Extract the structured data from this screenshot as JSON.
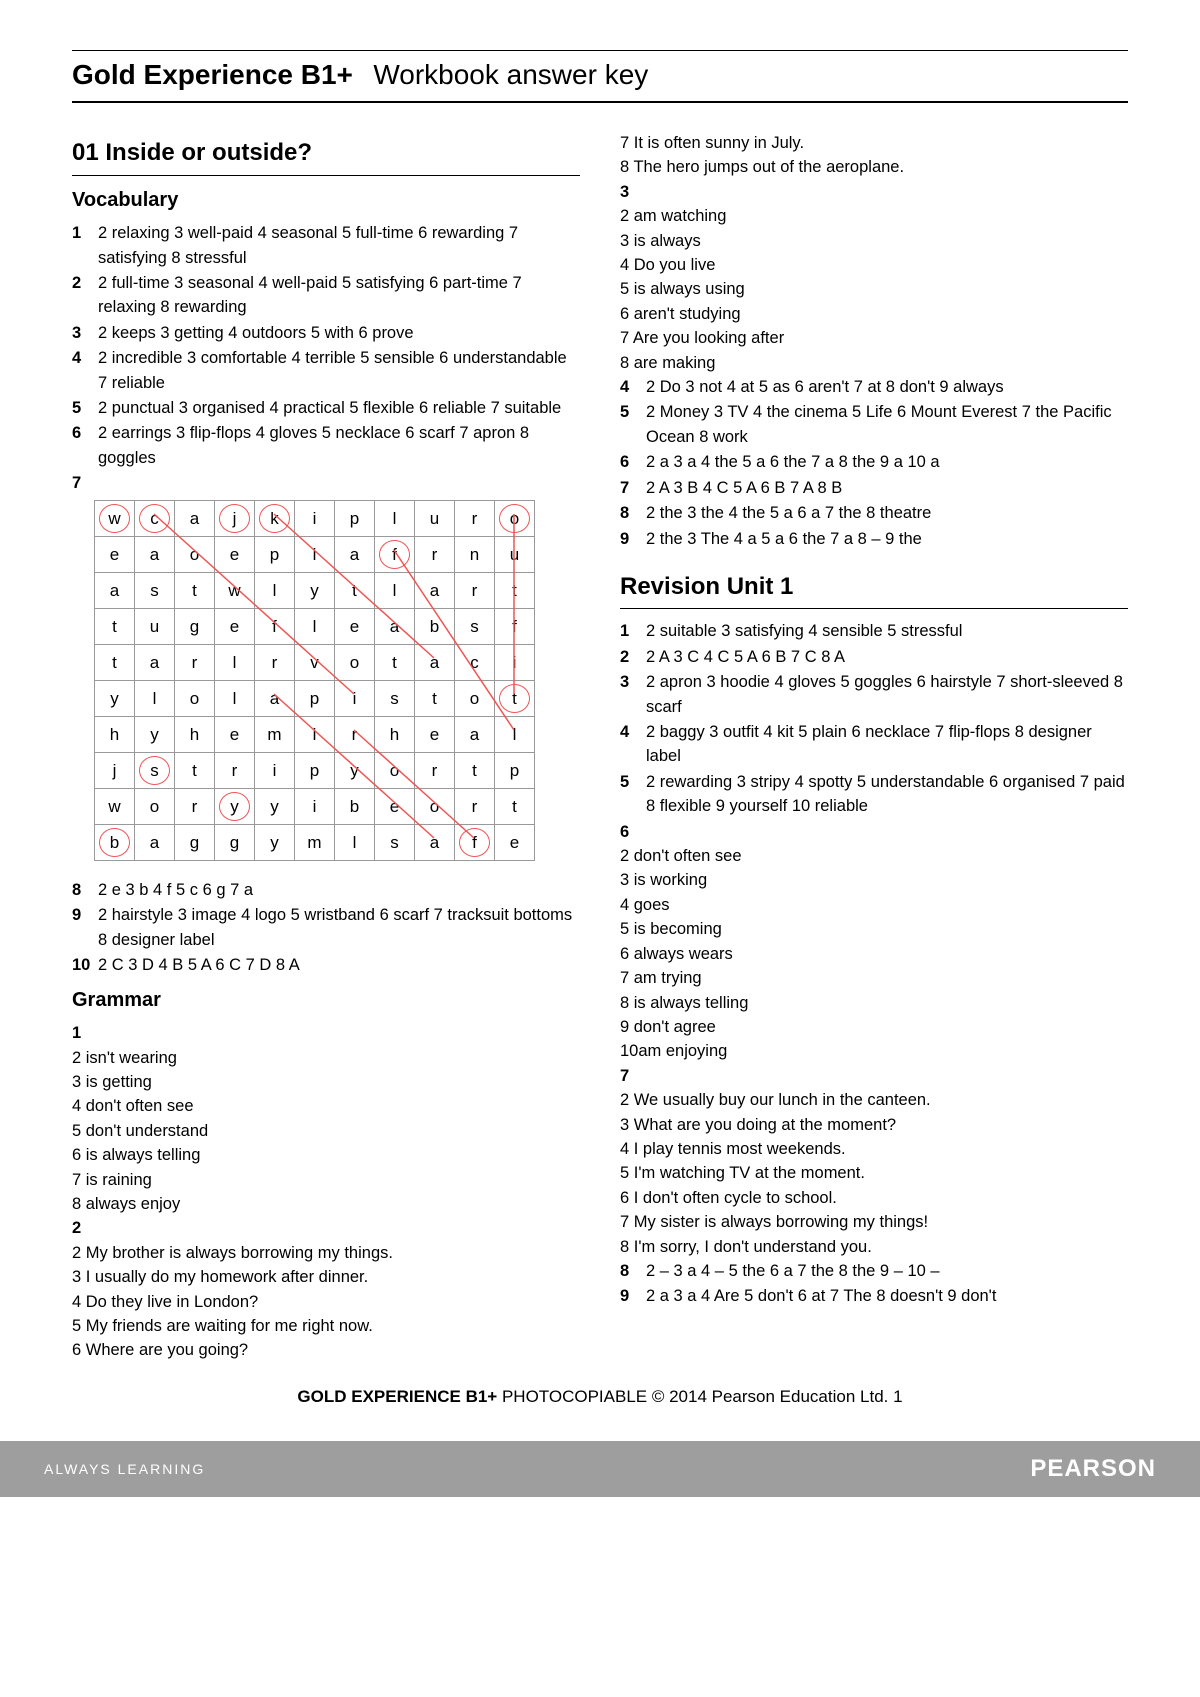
{
  "header": {
    "title_bold": "Gold Experience B1+",
    "title_light": "Workbook answer key"
  },
  "left": {
    "unit": "01 Inside or outside?",
    "vocab_h": "Vocabulary",
    "v": [
      {
        "n": "1",
        "t": "2 relaxing   3 well-paid   4 seasonal   5 full-time   6 rewarding   7 satisfying   8 stressful"
      },
      {
        "n": "2",
        "t": "2 full-time   3 seasonal   4 well-paid   5 satisfying   6 part-time   7 relaxing   8 rewarding"
      },
      {
        "n": "3",
        "t": "2 keeps   3 getting   4 outdoors   5 with   6 prove"
      },
      {
        "n": "4",
        "t": "2 incredible   3 comfortable   4 terrible   5 sensible   6 understandable   7 reliable"
      },
      {
        "n": "5",
        "t": "2 punctual   3 organised   4 practical   5 flexible   6 reliable   7 suitable"
      },
      {
        "n": "6",
        "t": "2 earrings   3 flip-flops   4 gloves   5 necklace   6 scarf   7 apron   8 goggles"
      }
    ],
    "q7": "7",
    "grid": [
      [
        "w",
        "c",
        "a",
        "j",
        "k",
        "i",
        "p",
        "l",
        "u",
        "r",
        "o"
      ],
      [
        "e",
        "a",
        "o",
        "e",
        "p",
        "i",
        "a",
        "f",
        "r",
        "n",
        "u"
      ],
      [
        "a",
        "s",
        "t",
        "w",
        "l",
        "y",
        "t",
        "l",
        "a",
        "r",
        "t"
      ],
      [
        "t",
        "u",
        "g",
        "e",
        "f",
        "l",
        "e",
        "a",
        "b",
        "s",
        "f"
      ],
      [
        "t",
        "a",
        "r",
        "l",
        "r",
        "v",
        "o",
        "t",
        "a",
        "c",
        "i"
      ],
      [
        "y",
        "l",
        "o",
        "l",
        "a",
        "p",
        "i",
        "s",
        "t",
        "o",
        "t"
      ],
      [
        "h",
        "y",
        "h",
        "e",
        "m",
        "i",
        "r",
        "h",
        "e",
        "a",
        "l"
      ],
      [
        "j",
        "s",
        "t",
        "r",
        "i",
        "p",
        "y",
        "o",
        "r",
        "t",
        "p"
      ],
      [
        "w",
        "o",
        "r",
        "y",
        "y",
        "i",
        "b",
        "e",
        "o",
        "r",
        "t"
      ],
      [
        "b",
        "a",
        "g",
        "g",
        "y",
        "m",
        "l",
        "s",
        "a",
        "f",
        "e"
      ]
    ],
    "circled": [
      [
        0,
        0
      ],
      [
        0,
        1
      ],
      [
        0,
        3
      ],
      [
        0,
        4
      ],
      [
        0,
        10
      ],
      [
        1,
        7
      ],
      [
        7,
        1
      ],
      [
        9,
        0
      ],
      [
        9,
        9
      ],
      [
        5,
        10
      ],
      [
        8,
        3
      ]
    ],
    "after_grid": [
      {
        "n": "8",
        "t": "2 e   3 b   4 f   5 c   6 g   7 a"
      },
      {
        "n": "9",
        "t": "2 hairstyle   3 image   4 logo   5 wristband   6 scarf   7 tracksuit bottoms   8 designer label"
      },
      {
        "n": "10",
        "t": "2 C   3 D   4 B   5 A   6 C   7 D   8 A"
      }
    ],
    "grammar_h": "Grammar",
    "g1n": "1",
    "g1": [
      "2  isn't wearing",
      "3  is getting",
      "4  don't often see",
      "5  don't understand",
      "6  is always telling",
      "7  is raining",
      "8  always enjoy"
    ],
    "g2n": "2",
    "g2": [
      "2  My brother is always borrowing my things.",
      "3  I usually do my homework after dinner.",
      "4  Do they live in London?",
      "5  My friends are waiting for me right now.",
      "6  Where are you going?"
    ]
  },
  "right": {
    "g2cont": [
      "7  It is often sunny in July.",
      "8  The hero jumps out of the aeroplane."
    ],
    "g3n": "3",
    "g3": [
      "2  am watching",
      "3  is always",
      "4  Do you live",
      "5  is always using",
      "6  aren't studying",
      "7  Are you looking after",
      "8  are making"
    ],
    "g4": {
      "n": "4",
      "t": "2 Do   3 not   4 at   5 as   6 aren't   7 at   8 don't   9 always"
    },
    "g5": {
      "n": "5",
      "t": "2 Money   3 TV   4 the cinema   5 Life   6 Mount Everest   7 the Pacific Ocean   8 work"
    },
    "g6": {
      "n": "6",
      "t": "2 a   3 a   4 the   5 a   6 the   7 a   8 the   9 a   10 a"
    },
    "g7": {
      "n": "7",
      "t": "2 A   3 B   4 C   5 A   6 B   7 A   8 B"
    },
    "g8": {
      "n": "8",
      "t": "2 the   3 the   4 the   5 a   6 a   7 the   8 theatre"
    },
    "g9": {
      "n": "9",
      "t": "2 the   3 The   4 a   5 a   6 the   7 a   8 –   9 the"
    },
    "rev_h": "Revision Unit 1",
    "r": [
      {
        "n": "1",
        "t": "2 suitable   3 satisfying   4 sensible   5 stressful"
      },
      {
        "n": "2",
        "t": "2 A   3 C   4 C   5 A   6 B   7 C   8 A"
      },
      {
        "n": "3",
        "t": "2 apron   3 hoodie   4 gloves   5 goggles   6 hairstyle   7 short-sleeved   8 scarf"
      },
      {
        "n": "4",
        "t": "2 baggy   3 outfit   4 kit   5 plain   6 necklace   7 flip-flops   8 designer label"
      },
      {
        "n": "5",
        "t": "2 rewarding   3 stripy   4 spotty   5 understandable   6 organised   7 paid   8 flexible   9 yourself   10 reliable"
      }
    ],
    "r6n": "6",
    "r6": [
      "2  don't often see",
      "3  is working",
      "4  goes",
      "5  is becoming",
      "6  always wears",
      "7  am trying",
      "8  is always telling",
      "9  don't agree",
      "10am enjoying"
    ],
    "r7n": "7",
    "r7": [
      "2  We usually buy our lunch in the canteen.",
      "3  What are you doing at the moment?",
      "4  I play tennis most weekends.",
      "5  I'm watching TV at the moment.",
      "6  I don't often cycle to school.",
      "7  My sister is always borrowing my things!",
      "8  I'm sorry, I don't understand you."
    ],
    "r8": {
      "n": "8",
      "t": "2 –   3 a   4 –   5 the   6 a   7 the   8 the   9 –   10 –"
    },
    "r9": {
      "n": "9",
      "t": "2 a   3 a   4 Are   5 don't   6 at   7 The   8 doesn't   9 don't"
    }
  },
  "footer": {
    "cp_bold": "GOLD EXPERIENCE B1+",
    "cp_rest": "   PHOTOCOPIABLE © 2014 Pearson Education Ltd.   ",
    "page": "1",
    "always": "ALWAYS LEARNING",
    "pearson": "PEARSON"
  },
  "colors": {
    "accent": "#e55",
    "grid_border": "#999",
    "footer_bg": "#9e9e9e"
  }
}
